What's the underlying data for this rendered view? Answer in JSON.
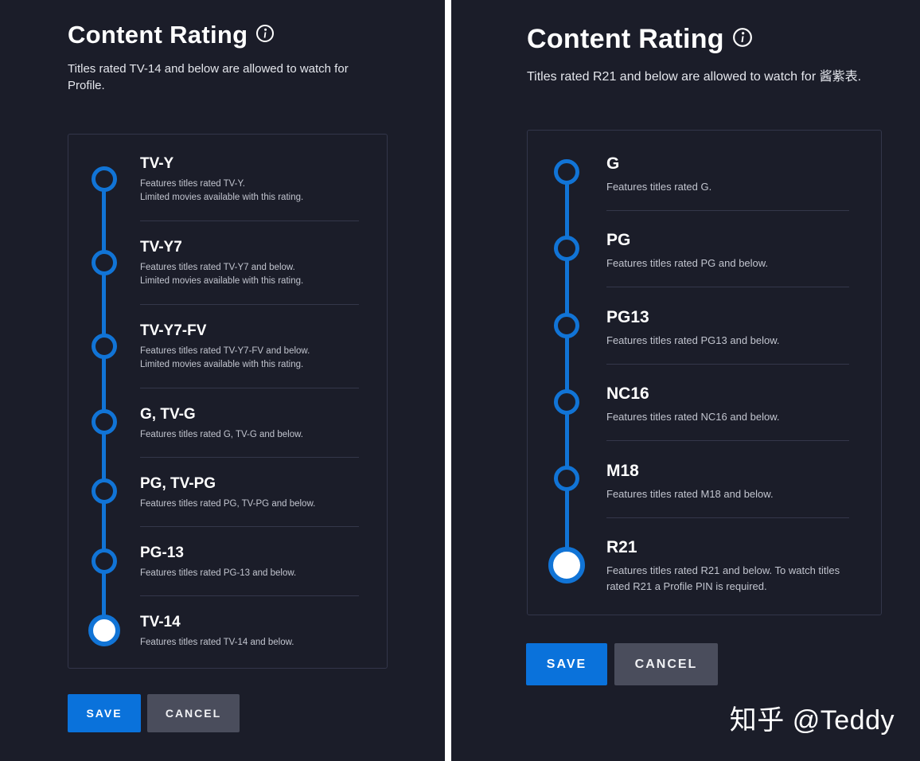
{
  "left": {
    "title": "Content Rating",
    "subtitle": "Titles rated TV-14 and below are allowed to watch for Profile.",
    "ratings": [
      {
        "name": "TV-Y",
        "desc": "Features titles rated TV-Y.",
        "desc2": "Limited movies available with this rating."
      },
      {
        "name": "TV-Y7",
        "desc": "Features titles rated TV-Y7 and below.",
        "desc2": "Limited movies available with this rating."
      },
      {
        "name": "TV-Y7-FV",
        "desc": "Features titles rated TV-Y7-FV and below.",
        "desc2": "Limited movies available with this rating."
      },
      {
        "name": "G, TV-G",
        "desc": "Features titles rated G, TV-G and below."
      },
      {
        "name": "PG, TV-PG",
        "desc": "Features titles rated PG, TV-PG and below."
      },
      {
        "name": "PG-13",
        "desc": "Features titles rated PG-13 and below."
      },
      {
        "name": "TV-14",
        "desc": "Features titles rated TV-14 and below."
      }
    ],
    "selected": "TV-14",
    "save_label": "SAVE",
    "cancel_label": "CANCEL"
  },
  "right": {
    "title": "Content Rating",
    "subtitle": "Titles rated R21 and below are allowed to watch for 酱紫表.",
    "ratings": [
      {
        "name": "G",
        "desc": "Features titles rated G."
      },
      {
        "name": "PG",
        "desc": "Features titles rated PG and below."
      },
      {
        "name": "PG13",
        "desc": "Features titles rated PG13 and below."
      },
      {
        "name": "NC16",
        "desc": "Features titles rated NC16 and below."
      },
      {
        "name": "M18",
        "desc": "Features titles rated M18 and below."
      },
      {
        "name": "R21",
        "desc": "Features titles rated R21 and below. To watch titles",
        "desc2": "rated R21 a Profile PIN is required."
      }
    ],
    "selected": "R21",
    "save_label": "SAVE",
    "cancel_label": "CANCEL"
  },
  "watermark": "知乎 @Teddy",
  "colors": {
    "background": "#1b1d29",
    "accent": "#1174d6",
    "save_button": "#0a72db",
    "cancel_button": "#4a4d5c",
    "card_border": "#33364a"
  },
  "icons": [
    "info-icon"
  ]
}
